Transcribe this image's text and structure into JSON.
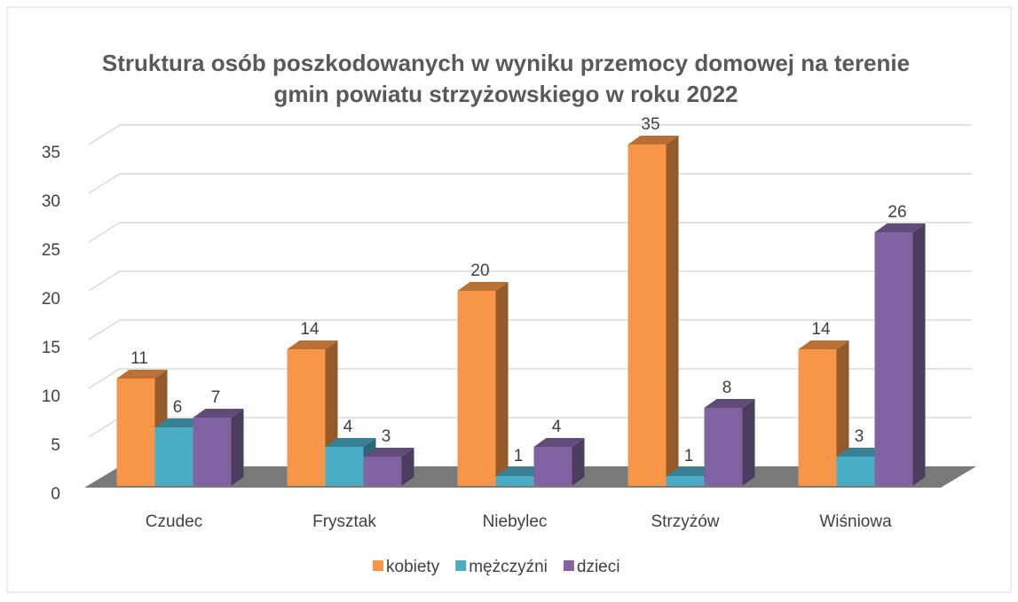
{
  "chart_data": {
    "type": "bar",
    "title": "Struktura osób poszkodowanych w wyniku przemocy domowej na terenie gmin powiatu strzyżowskiego w roku 2022",
    "categories": [
      "Czudec",
      "Frysztak",
      "Niebylec",
      "Strzyżów",
      "Wiśniowa"
    ],
    "series": [
      {
        "name": "kobiety",
        "color": "#f79646",
        "values": [
          11,
          14,
          20,
          35,
          14
        ]
      },
      {
        "name": "mężczyźni",
        "color": "#4bacc6",
        "values": [
          6,
          4,
          1,
          1,
          3
        ]
      },
      {
        "name": "dzieci",
        "color": "#8064a2",
        "values": [
          7,
          3,
          4,
          8,
          26
        ]
      }
    ],
    "ylim": [
      0,
      35
    ],
    "yticks": [
      0,
      5,
      10,
      15,
      20,
      25,
      30,
      35
    ],
    "grid": true,
    "legend": "bottom"
  }
}
